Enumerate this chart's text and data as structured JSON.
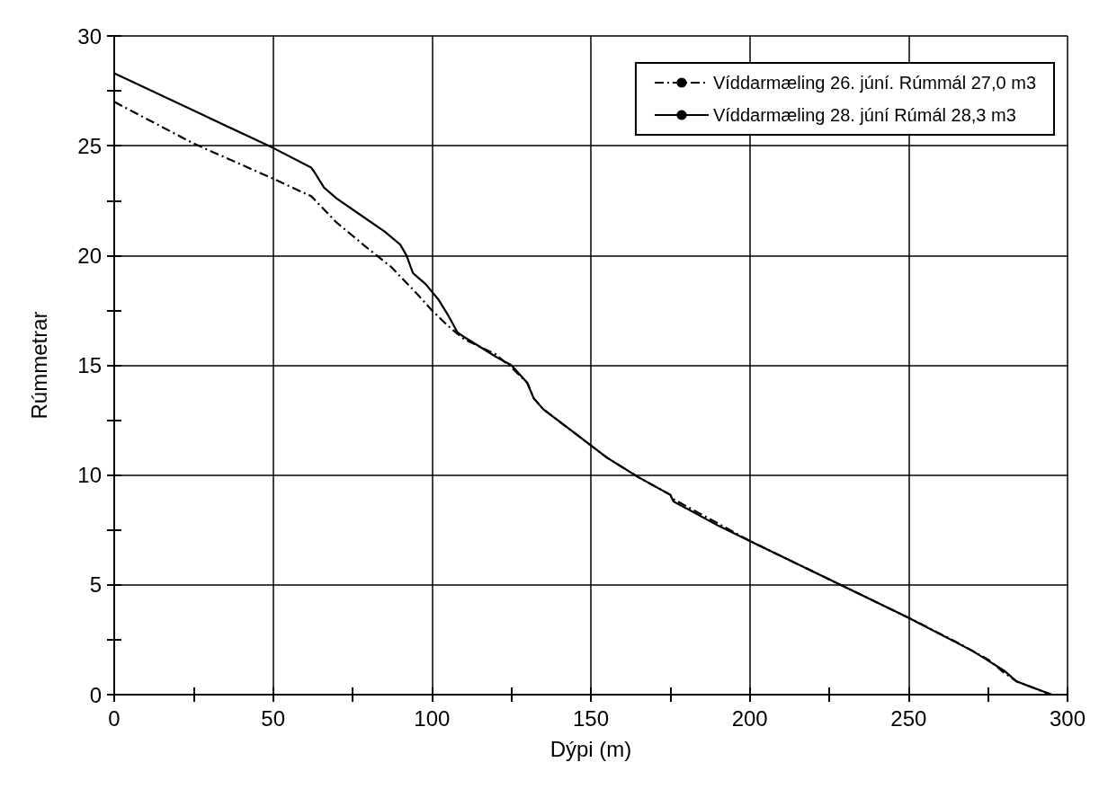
{
  "chart_data": {
    "type": "line",
    "xlabel": "Dýpi (m)",
    "ylabel": "Rúmmetrar",
    "xlim": [
      0,
      300
    ],
    "xticks": [
      0,
      50,
      100,
      150,
      200,
      250,
      300
    ],
    "ylim": [
      0,
      30
    ],
    "yticks": [
      0,
      5,
      10,
      15,
      20,
      25,
      30
    ],
    "grid": true,
    "legend": "top right",
    "marker": "none",
    "series": [
      {
        "name": "Víddarmæling 26. júní. Rúmmál 27,0 m3",
        "color": "#000000",
        "line_style": "dashed",
        "x": [
          0,
          25,
          50,
          62,
          70,
          80,
          87,
          95,
          100,
          105,
          110,
          120,
          125,
          130,
          132,
          135,
          155,
          165,
          175,
          176,
          190,
          200,
          230,
          250,
          265,
          275,
          280,
          284,
          295
        ],
        "values": [
          27.0,
          25.1,
          23.5,
          22.7,
          21.5,
          20.3,
          19.5,
          18.3,
          17.5,
          16.8,
          16.2,
          15.5,
          14.9,
          14.2,
          13.5,
          13.0,
          10.8,
          9.9,
          9.1,
          8.9,
          7.8,
          7.0,
          4.9,
          3.5,
          2.4,
          1.6,
          1.0,
          0.6,
          0
        ]
      },
      {
        "name": "Víddarmæling 28. júní Rúmál 28,3 m3",
        "color": "#000000",
        "line_style": "solid",
        "x": [
          0,
          25,
          50,
          62,
          63,
          66,
          70,
          80,
          85,
          90,
          92,
          94,
          98,
          102,
          105,
          108,
          110,
          120,
          125,
          130,
          132,
          135,
          145,
          155,
          165,
          175,
          176,
          190,
          200,
          230,
          250,
          270,
          280,
          284,
          295
        ],
        "values": [
          28.3,
          26.6,
          24.9,
          24.0,
          23.8,
          23.1,
          22.6,
          21.6,
          21.1,
          20.5,
          20.0,
          19.2,
          18.7,
          18.0,
          17.3,
          16.5,
          16.3,
          15.4,
          15.0,
          14.2,
          13.5,
          13.0,
          11.9,
          10.8,
          9.9,
          9.1,
          8.8,
          7.7,
          7.0,
          4.9,
          3.5,
          2.0,
          1.1,
          0.6,
          0
        ]
      }
    ]
  }
}
